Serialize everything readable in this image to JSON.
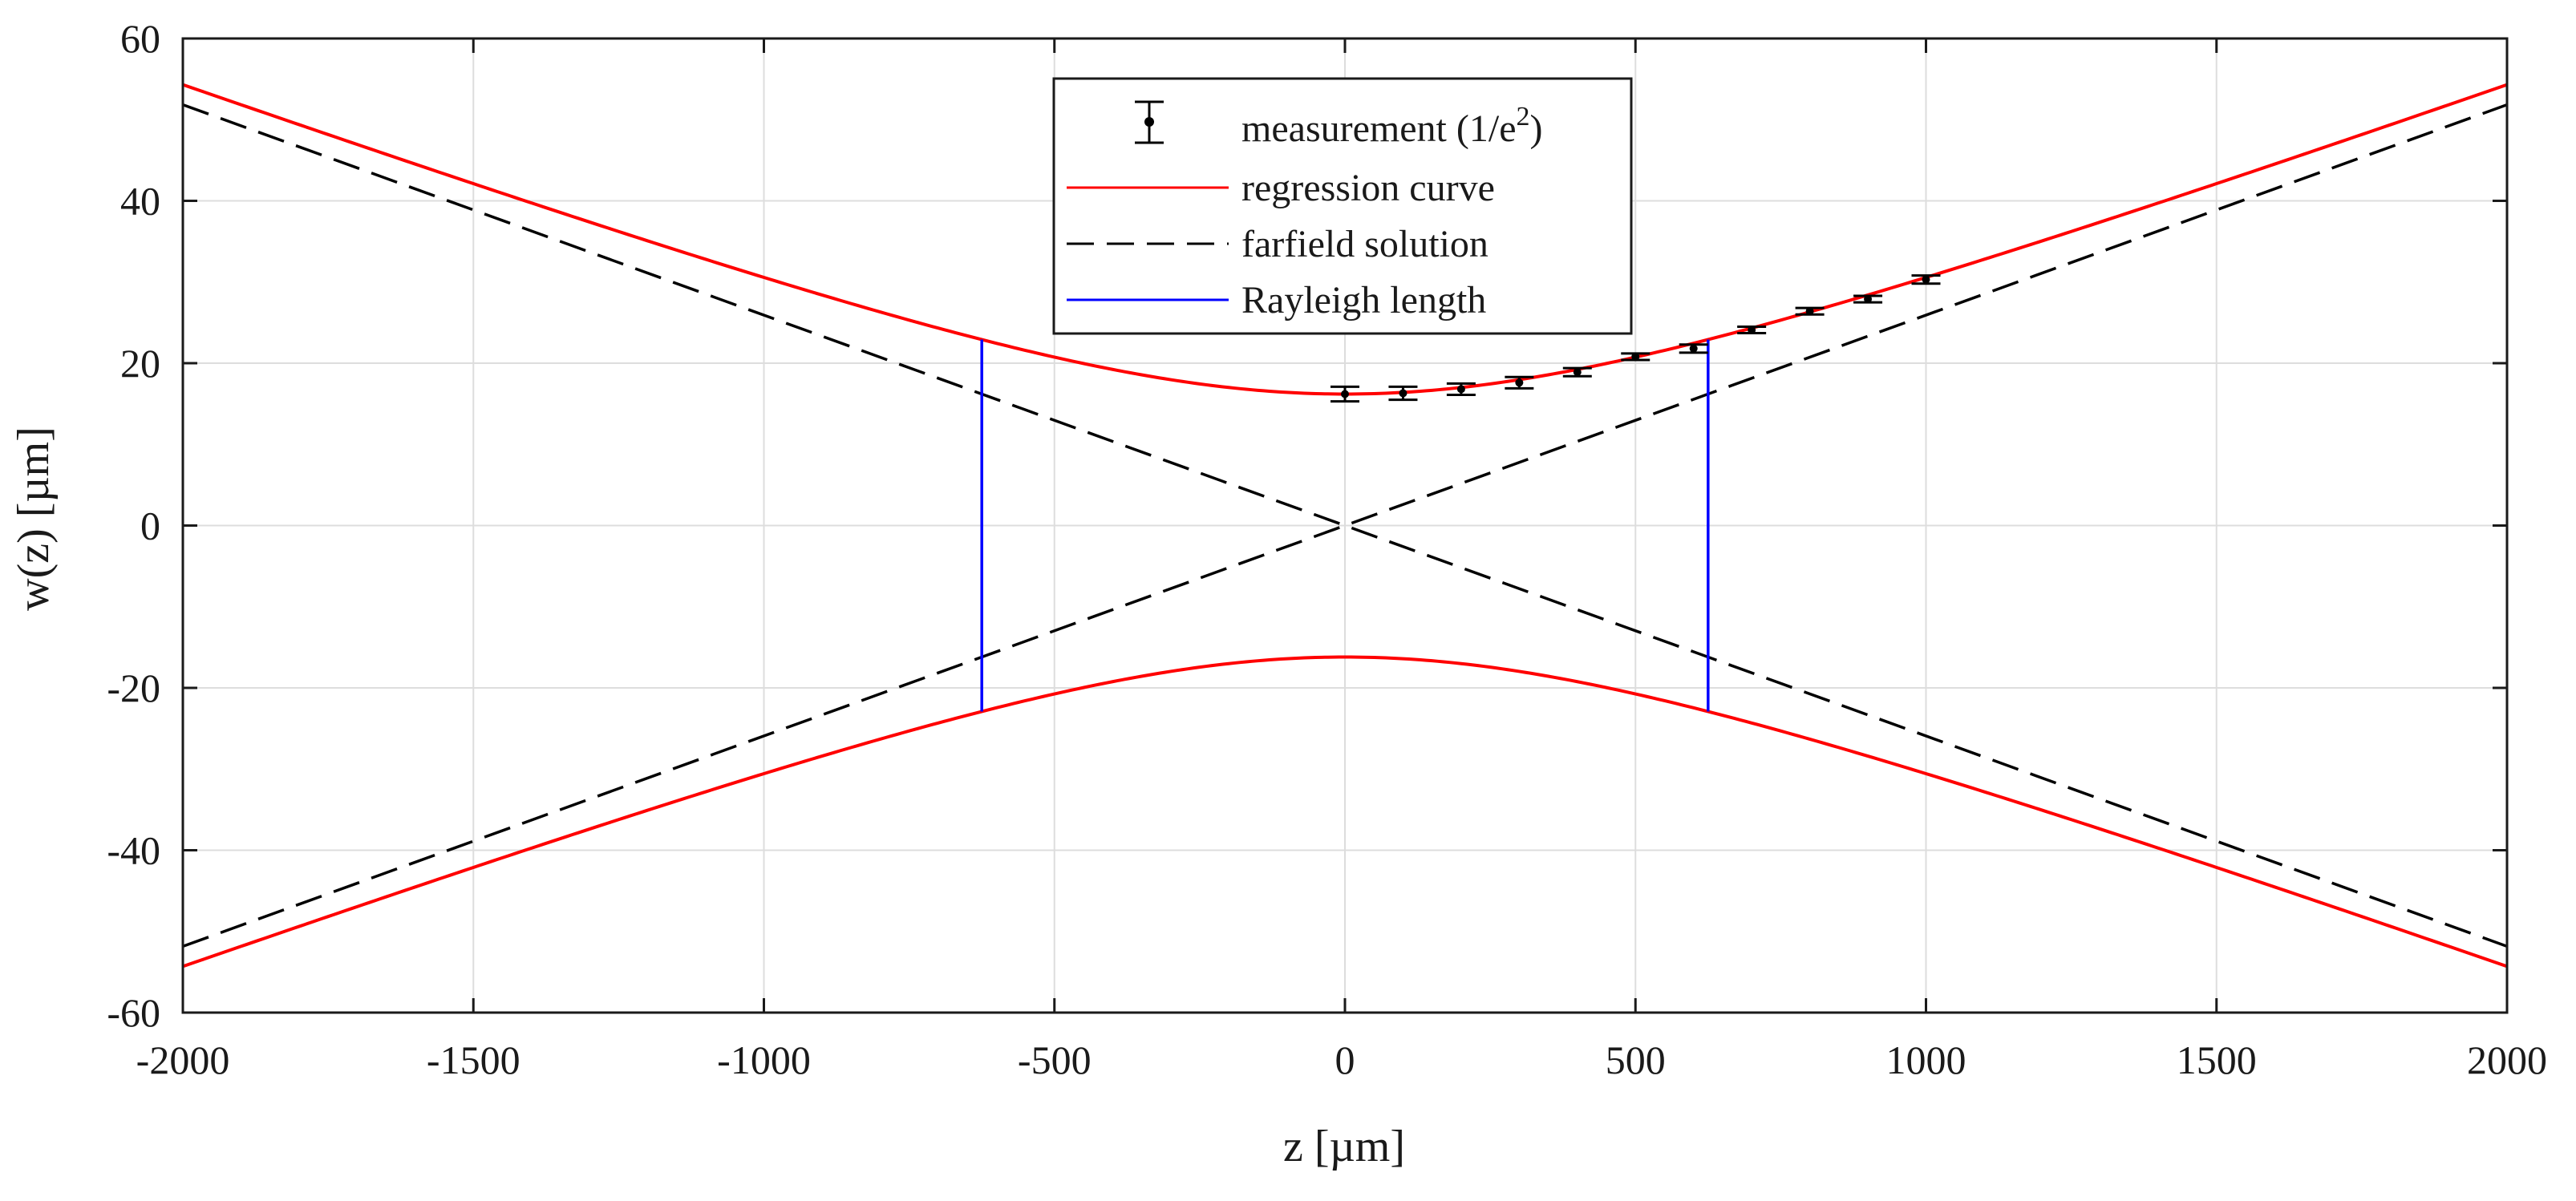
{
  "chart_data": {
    "type": "line",
    "xlabel": "z [µm]",
    "ylabel": "w(z) [µm]",
    "xlim": [
      -2000,
      2000
    ],
    "ylim": [
      -60,
      60
    ],
    "grid": true,
    "xticks": [
      "-2000",
      "-1500",
      "-1000",
      "-500",
      "0",
      "500",
      "1000",
      "1500",
      "2000"
    ],
    "yticks": [
      "60",
      "40",
      "20",
      "0",
      "-20",
      "-40",
      "-60"
    ],
    "legend": {
      "placement": "top-center",
      "entries": [
        {
          "label": "measurement (1/e",
          "superscript": "2",
          "suffix": ")"
        },
        {
          "label": "regression curve"
        },
        {
          "label": "farfield solution"
        },
        {
          "label": "Rayleigh length"
        }
      ]
    },
    "colors": {
      "measurement": "#000000",
      "regression": "#ff0000",
      "farfield": "#000000",
      "rayleigh": "#0000ff",
      "grid": "#dddddd",
      "axes": "#1a1a1a"
    },
    "beam": {
      "waist_w0": 16.2,
      "rayleigh_length_zR": 625
    },
    "measurement": {
      "z": [
        0,
        100,
        200,
        300,
        400,
        500,
        600,
        700,
        800,
        900,
        1000
      ],
      "w": [
        16.2,
        16.3,
        16.8,
        17.6,
        18.9,
        20.8,
        21.8,
        24.1,
        26.4,
        27.9,
        30.3
      ],
      "err": [
        0.9,
        0.8,
        0.7,
        0.7,
        0.5,
        0.4,
        0.5,
        0.4,
        0.4,
        0.4,
        0.5
      ]
    },
    "series": [
      {
        "name": "regression curve",
        "formula": "± w0*sqrt(1+(z/zR)^2)"
      },
      {
        "name": "farfield solution",
        "formula": "± (w0/zR)*z"
      },
      {
        "name": "Rayleigh length",
        "x": [
          -625,
          625
        ]
      }
    ]
  }
}
